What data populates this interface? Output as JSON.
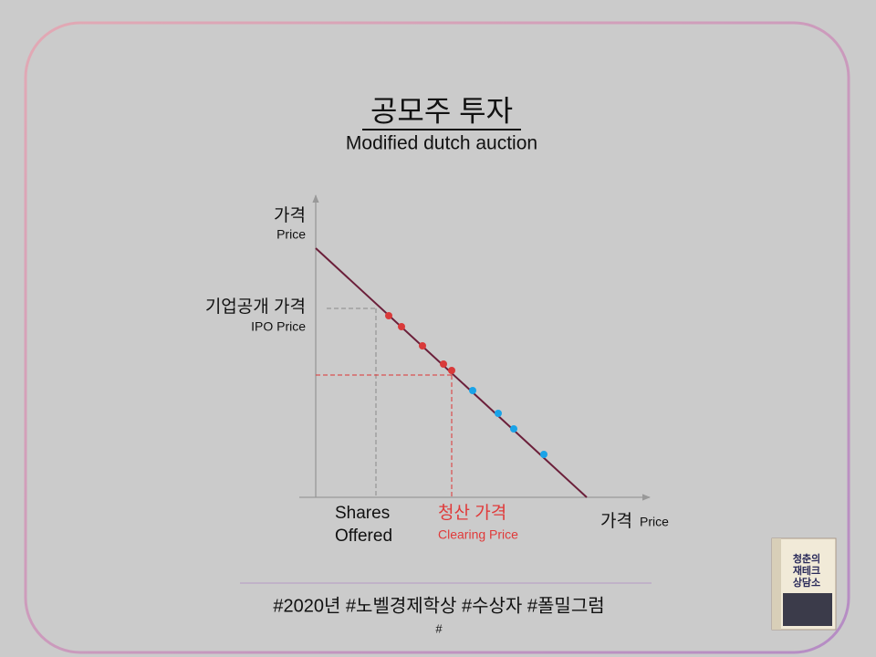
{
  "title": "공모주 투자",
  "subtitle": "Modified dutch auction",
  "diagram": {
    "y_axis": {
      "label": "가격",
      "sublabel": "Price"
    },
    "ipo_price": {
      "label": "기업공개 가격",
      "sublabel": "IPO Price"
    },
    "shares_offered": {
      "lines": [
        "Shares",
        "Offered"
      ]
    },
    "clearing_price": {
      "label": "청산 가격",
      "sublabel": "Clearing Price"
    },
    "x_axis": {
      "label": "가격",
      "sublabel": "Price"
    }
  },
  "footer": {
    "hashtags": "#2020년 #노벨경제학상 #수상자 #폴밀그럼",
    "hash": "#"
  },
  "book": {
    "title_lines": [
      "청춘의",
      "재테크",
      "상담소"
    ]
  }
}
